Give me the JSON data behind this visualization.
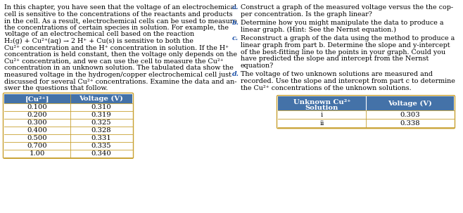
{
  "left_paragraph": [
    "In this chapter, you have seen that the voltage of an electrochemical",
    "cell is sensitive to the concentrations of the reactants and products",
    "in the cell. As a result, electrochemical cells can be used to measure",
    "the concentrations of certain species in solution. For example, the",
    "voltage of an electrochemical cell based on the reaction",
    "H₂(g) + Cu²⁺(aq) → 2 H⁺ + Cu(s) is sensitive to both the",
    "Cu²⁺ concentration and the H⁺ concentration in solution. If the H⁺",
    "concentration is held constant, then the voltage only depends on the",
    "Cu²⁺ concentration, and we can use the cell to measure the Cu²⁺",
    "concentration in an unknown solution. The tabulated data show the",
    "measured voltage in the hydrogen/copper electrochemical cell just",
    "discussed for several Cu²⁺ concentrations. Examine the data and an-",
    "swer the questions that follow."
  ],
  "right_items": [
    {
      "letter": "a.",
      "lines": [
        "Construct a graph of the measured voltage versus the the cop-",
        "per concentration. Is the graph linear?"
      ]
    },
    {
      "letter": "b.",
      "lines": [
        "Determine how you might manipulate the data to produce a",
        "linear graph. (Hint: See the Nernst equation.)"
      ]
    },
    {
      "letter": "c.",
      "lines": [
        "Reconstruct a graph of the data using the method to produce a",
        "linear graph from part b. Determine the slope and y-intercept",
        "of the best-fitting line to the points in your graph. Could you",
        "have predicted the slope and intercept from the Nernst",
        "equation?"
      ]
    },
    {
      "letter": "d.",
      "lines": [
        "The voltage of two unknown solutions are measured and",
        "recorded. Use the slope and intercept from part c to determine",
        "the Cu²⁺ concentrations of the unknown solutions."
      ]
    }
  ],
  "table1_header_col1": "[Cu²⁺]",
  "table1_header_col2": "Voltage (V)",
  "table1_data": [
    [
      "0.100",
      "0.310"
    ],
    [
      "0.200",
      "0.319"
    ],
    [
      "0.300",
      "0.325"
    ],
    [
      "0.400",
      "0.328"
    ],
    [
      "0.500",
      "0.331"
    ],
    [
      "0.700",
      "0.335"
    ],
    [
      "1.00",
      "0.340"
    ]
  ],
  "table2_header_col1_line1": "Unknown Cu²⁺",
  "table2_header_col1_line2": "Solution",
  "table2_header_col2": "Voltage (V)",
  "table2_data": [
    [
      "i",
      "0.303"
    ],
    [
      "ii",
      "0.338"
    ]
  ],
  "header_bg": "#4472a8",
  "header_fg": "#ffffff",
  "border_color": "#c8a030",
  "text_color": "#000000",
  "letter_color": "#2255aa",
  "bg_color": "#ffffff",
  "font_size_body": 6.8,
  "font_size_table": 7.2,
  "fig_width": 6.58,
  "fig_height": 3.03,
  "dpi": 100
}
